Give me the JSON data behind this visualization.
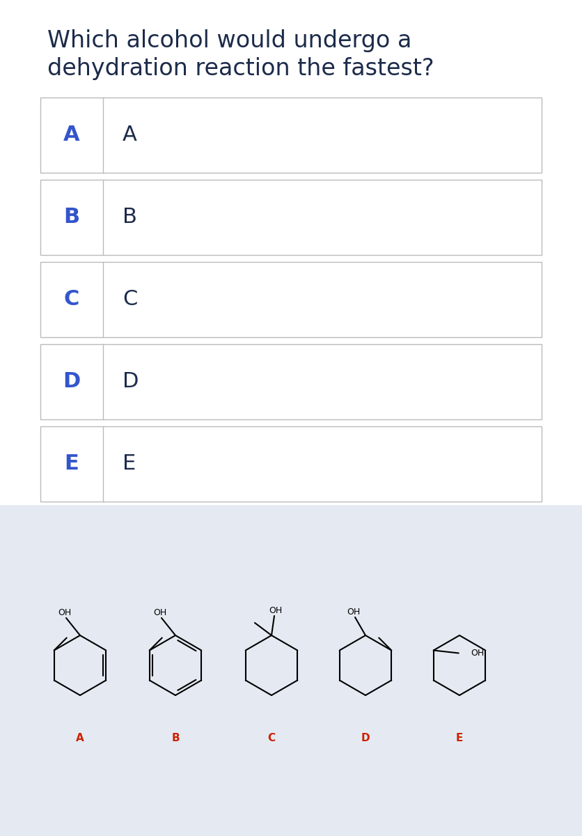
{
  "title_line1": "Which alcohol would undergo a",
  "title_line2": "dehydration reaction the fastest?",
  "title_color": "#1c2b4a",
  "title_fontsize": 24,
  "options": [
    "A",
    "B",
    "C",
    "D",
    "E"
  ],
  "option_label_color": "#3355cc",
  "option_text_color": "#1c2b4a",
  "bg_color": "#ffffff",
  "bottom_bg_color": "#e5eaf2",
  "molecule_label_color": "#cc2200",
  "border_color": "#bbbbbb",
  "mol_label_fontsize": 11,
  "oh_fontsize": 9
}
